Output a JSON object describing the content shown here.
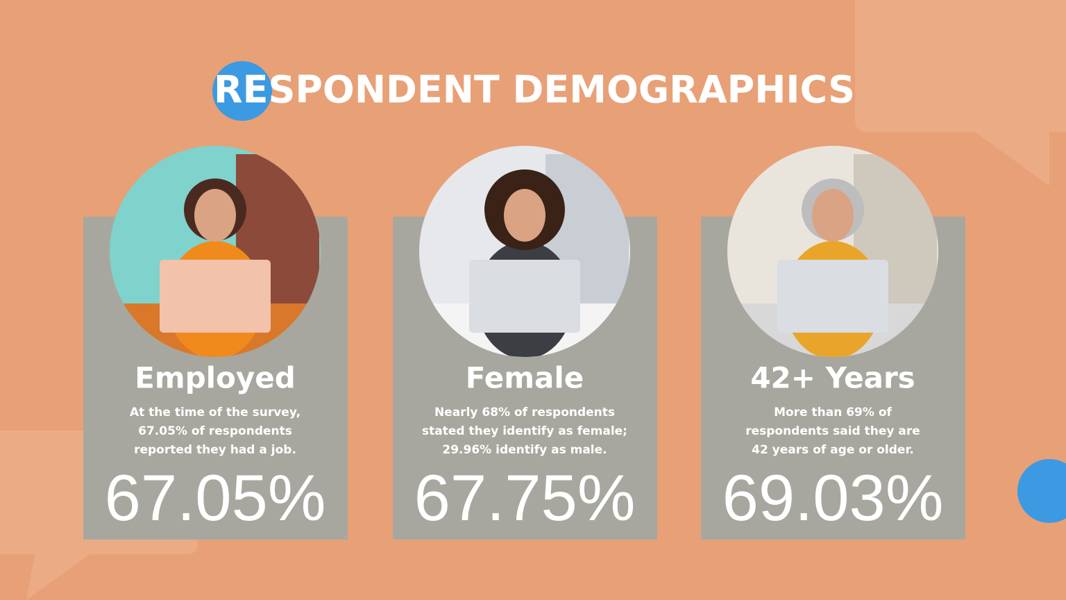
{
  "header": {
    "title": "RESPONDENT DEMOGRAPHICS"
  },
  "cards": [
    {
      "heading": "Employed",
      "description": [
        "At the time of the survey,",
        "67.05% of respondents",
        "reported they had a job."
      ],
      "stat": "67.05%"
    },
    {
      "heading": "Female",
      "description": [
        "Nearly 68% of respondents",
        "stated they identify as female;",
        "29.96% identify as male."
      ],
      "stat": "67.75%"
    },
    {
      "heading": "42+ Years",
      "description": [
        "More than 69% of",
        "respondents said they are",
        "42 years of age or older."
      ],
      "stat": "69.03%"
    }
  ]
}
